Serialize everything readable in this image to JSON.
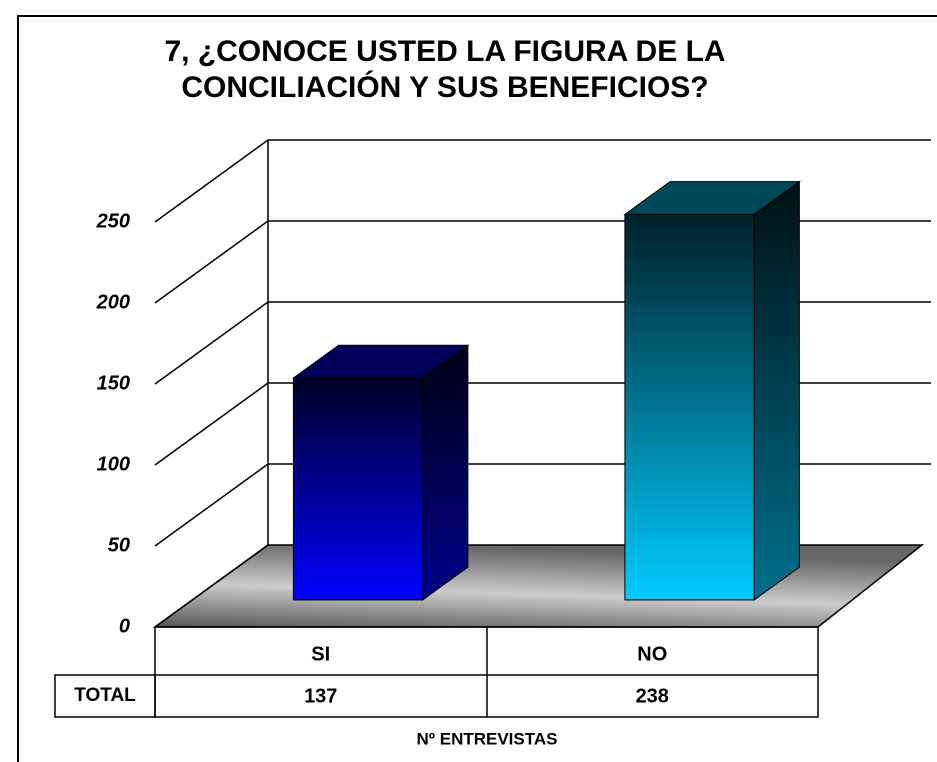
{
  "chart_data": {
    "type": "bar3d",
    "title": "7, ¿CONOCE USTED LA FIGURA DE LA CONCILIACIÓN Y SUS BENEFICIOS?",
    "categories": [
      "SI",
      "NO"
    ],
    "values": [
      137,
      238
    ],
    "colors": [
      "#0000ff",
      "#00ccff"
    ],
    "ylim": [
      0,
      250
    ],
    "yticks": [
      0,
      50,
      100,
      150,
      200,
      250
    ],
    "grid": true,
    "table_row_label": "TOTAL",
    "x_label": "Nº ENTREVISTAS"
  }
}
